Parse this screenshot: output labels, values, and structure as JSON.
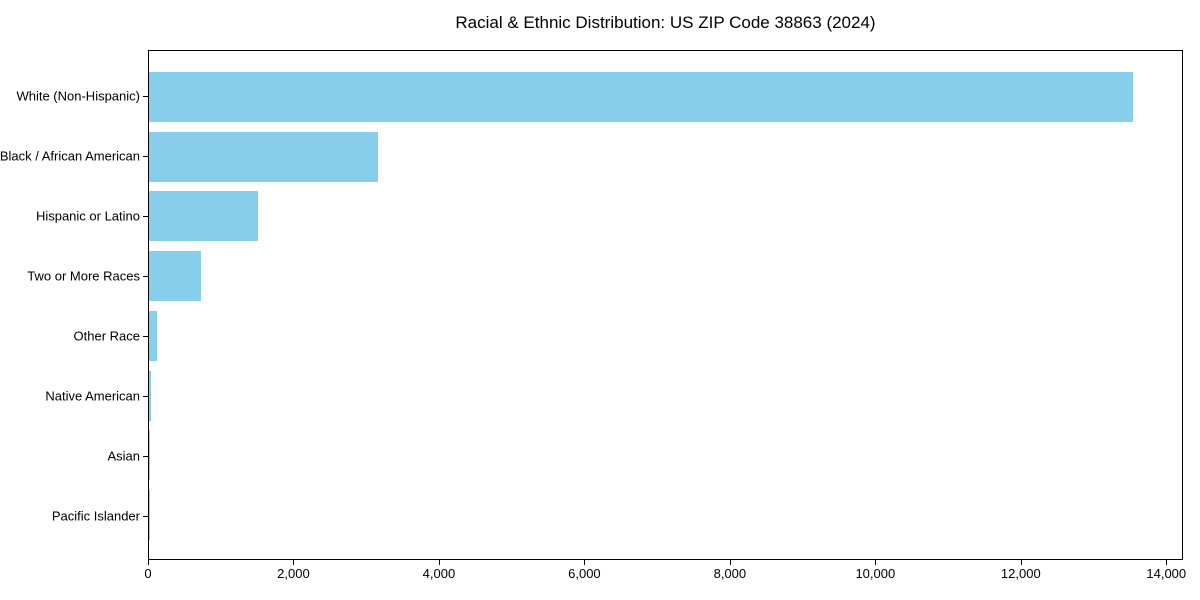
{
  "chart_data": {
    "type": "bar",
    "orientation": "horizontal",
    "title": "Racial & Ethnic Distribution: US ZIP Code 38863 (2024)",
    "categories": [
      "White (Non-Hispanic)",
      "Black / African American",
      "Hispanic or Latino",
      "Two or More Races",
      "Other Race",
      "Native American",
      "Asian",
      "Pacific Islander"
    ],
    "values": [
      13550,
      3150,
      1500,
      715,
      110,
      25,
      8,
      3
    ],
    "xlabel": "",
    "ylabel": "",
    "xlim": [
      0,
      14230
    ],
    "xtick_values": [
      0,
      2000,
      4000,
      6000,
      8000,
      10000,
      12000,
      14000
    ],
    "xtick_labels": [
      "0",
      "2,000",
      "4,000",
      "6,000",
      "8,000",
      "10,000",
      "12,000",
      "14,000"
    ],
    "bar_color": "#87CEEB",
    "axis_color": "#000000",
    "background_color": "#ffffff",
    "grid": false,
    "legend": "none"
  }
}
